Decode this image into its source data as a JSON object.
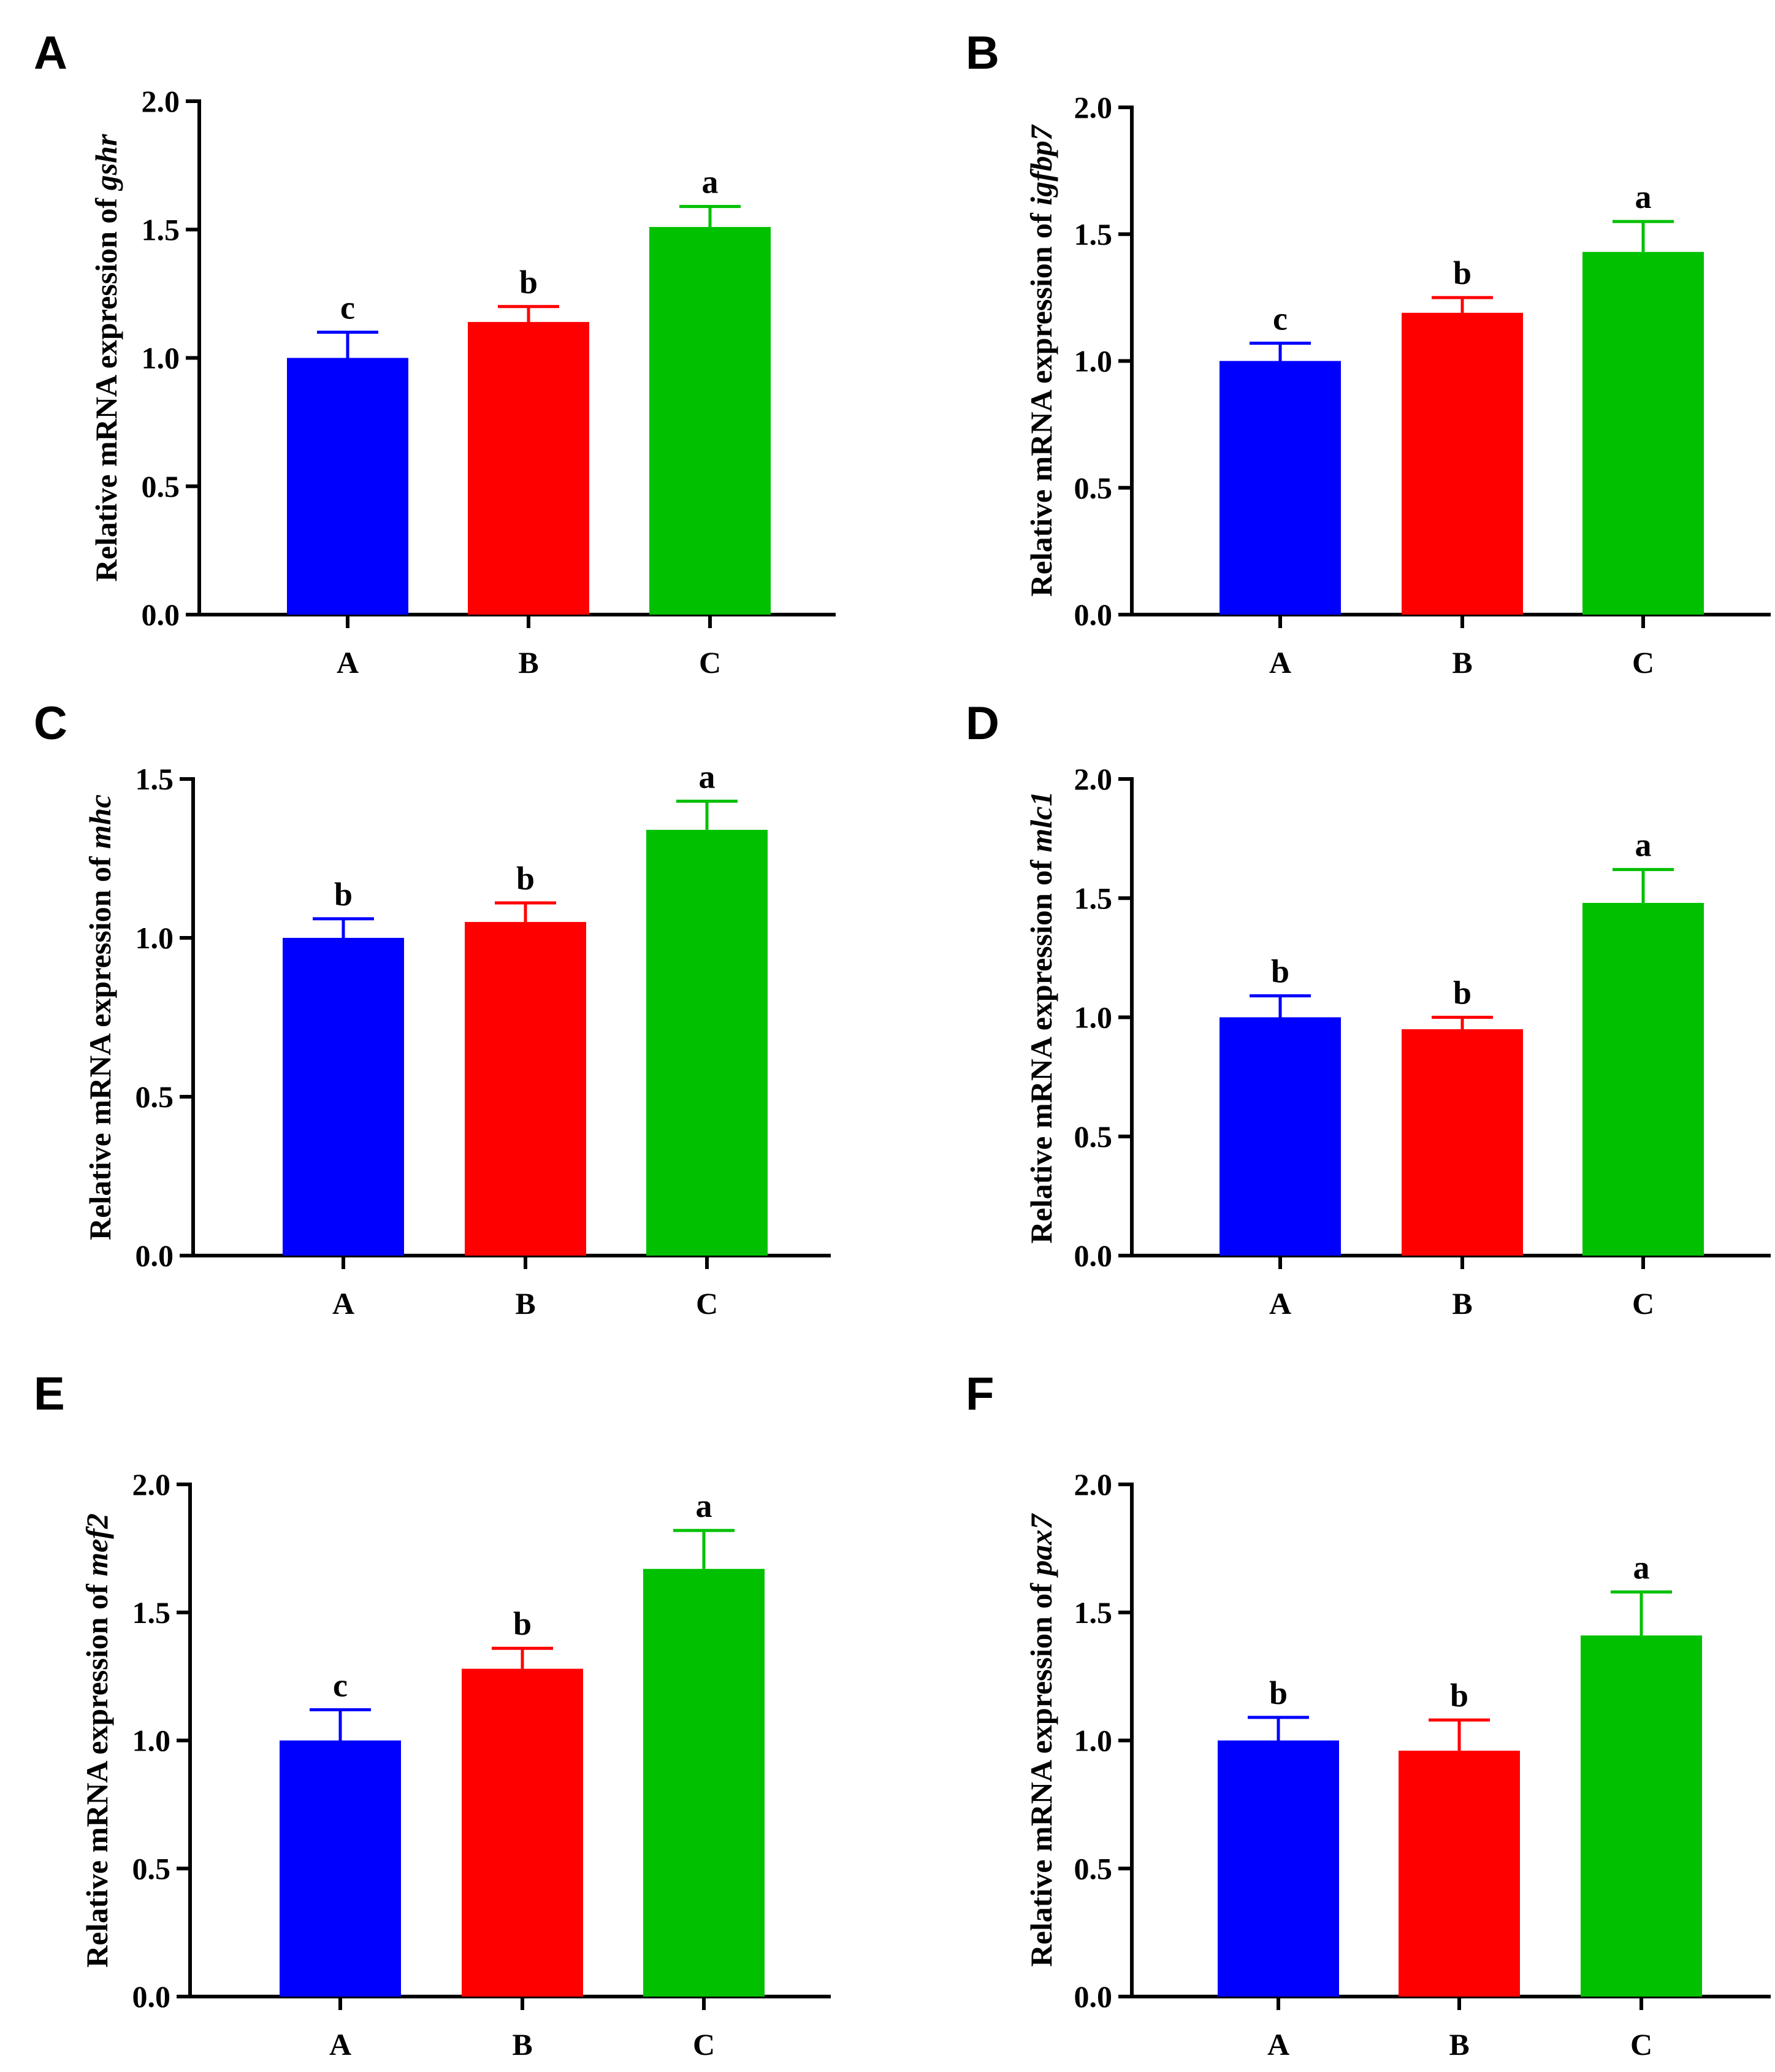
{
  "colors": {
    "A": "#0000ff",
    "B": "#ff0000",
    "C": "#00c000",
    "axis": "#000000"
  },
  "chart_data": [
    {
      "panel": "A",
      "type": "bar",
      "ylabel_prefix": "Relative mRNA expression of ",
      "gene": "gshr",
      "categories": [
        "A",
        "B",
        "C"
      ],
      "values": [
        1.0,
        1.14,
        1.51
      ],
      "errors": [
        0.1,
        0.06,
        0.08
      ],
      "significance": [
        "c",
        "b",
        "a"
      ],
      "ylim": [
        0,
        2.0
      ],
      "yticks": [
        "0.0",
        "0.5",
        "1.0",
        "1.5",
        "2.0"
      ]
    },
    {
      "panel": "B",
      "type": "bar",
      "ylabel_prefix": "Relative mRNA expression of ",
      "gene": "igfbp7",
      "categories": [
        "A",
        "B",
        "C"
      ],
      "values": [
        1.0,
        1.19,
        1.43
      ],
      "errors": [
        0.07,
        0.06,
        0.12
      ],
      "significance": [
        "c",
        "b",
        "a"
      ],
      "ylim": [
        0,
        2.0
      ],
      "yticks": [
        "0.0",
        "0.5",
        "1.0",
        "1.5",
        "2.0"
      ]
    },
    {
      "panel": "C",
      "type": "bar",
      "ylabel_prefix": "Relative mRNA expression of ",
      "gene": "mhc",
      "categories": [
        "A",
        "B",
        "C"
      ],
      "values": [
        1.0,
        1.05,
        1.34
      ],
      "errors": [
        0.06,
        0.06,
        0.09
      ],
      "significance": [
        "b",
        "b",
        "a"
      ],
      "ylim": [
        0,
        1.5
      ],
      "yticks": [
        "0.0",
        "0.5",
        "1.0",
        "1.5"
      ]
    },
    {
      "panel": "D",
      "type": "bar",
      "ylabel_prefix": "Relative mRNA expression of ",
      "gene": "mlc1",
      "categories": [
        "A",
        "B",
        "C"
      ],
      "values": [
        1.0,
        0.95,
        1.48
      ],
      "errors": [
        0.09,
        0.05,
        0.14
      ],
      "significance": [
        "b",
        "b",
        "a"
      ],
      "ylim": [
        0,
        2.0
      ],
      "yticks": [
        "0.0",
        "0.5",
        "1.0",
        "1.5",
        "2.0"
      ]
    },
    {
      "panel": "E",
      "type": "bar",
      "ylabel_prefix": "Relative mRNA expression of ",
      "gene": "mef2",
      "categories": [
        "A",
        "B",
        "C"
      ],
      "values": [
        1.0,
        1.28,
        1.67
      ],
      "errors": [
        0.12,
        0.08,
        0.15
      ],
      "significance": [
        "c",
        "b",
        "a"
      ],
      "ylim": [
        0,
        2.0
      ],
      "yticks": [
        "0.0",
        "0.5",
        "1.0",
        "1.5",
        "2.0"
      ]
    },
    {
      "panel": "F",
      "type": "bar",
      "ylabel_prefix": "Relative mRNA expression of ",
      "gene": "pax7",
      "categories": [
        "A",
        "B",
        "C"
      ],
      "values": [
        1.0,
        0.96,
        1.41
      ],
      "errors": [
        0.09,
        0.12,
        0.17
      ],
      "significance": [
        "b",
        "b",
        "a"
      ],
      "ylim": [
        0,
        2.0
      ],
      "yticks": [
        "0.0",
        "0.5",
        "1.0",
        "1.5",
        "2.0"
      ]
    }
  ]
}
